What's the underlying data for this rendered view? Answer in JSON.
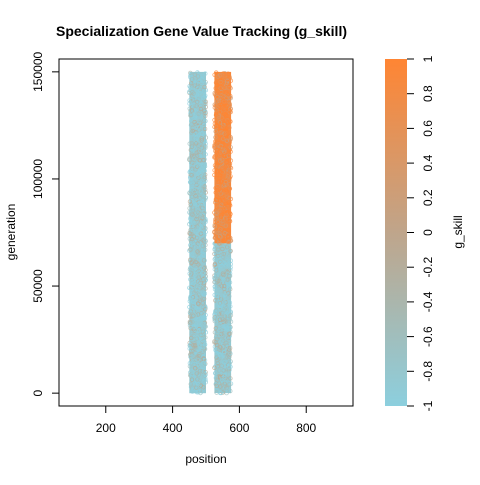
{
  "chart_data": {
    "type": "scatter",
    "title": "Specialization Gene Value Tracking (g_skill)",
    "xlabel": "position",
    "ylabel": "generation",
    "xlim": [
      60,
      940
    ],
    "ylim": [
      -6000,
      156000
    ],
    "x_ticks": [
      200,
      400,
      600,
      800
    ],
    "x_tick_labels": [
      "200",
      "400",
      "600",
      "800"
    ],
    "y_ticks": [
      0,
      50000,
      100000,
      150000
    ],
    "y_tick_labels": [
      "0",
      "50000",
      "100000",
      "150000"
    ],
    "grid": false,
    "colorbar": {
      "label": "g_skill",
      "range": [
        -1,
        1
      ],
      "ticks": [
        -1,
        -0.8,
        -0.6,
        -0.4,
        -0.2,
        0,
        0.2,
        0.4,
        0.6,
        0.8,
        1
      ],
      "tick_labels": [
        "-1",
        "-0.8",
        "-0.6",
        "-0.4",
        "-0.2",
        "0",
        "0.2",
        "0.4",
        "0.6",
        "0.8",
        "1"
      ],
      "color_low": "#8ccfde",
      "color_mid": "#bfa58b",
      "color_high": "#ff8533"
    },
    "series": [
      {
        "x_range": [
          450,
          500
        ],
        "y_range": [
          0,
          150000
        ],
        "segments": [
          {
            "y_from": 0,
            "y_to": 150000,
            "g_skill": -0.85
          }
        ]
      },
      {
        "x_range": [
          525,
          575
        ],
        "y_range": [
          0,
          150000
        ],
        "segments": [
          {
            "y_from": 0,
            "y_to": 70000,
            "g_skill": -0.85
          },
          {
            "y_from": 70000,
            "y_to": 150000,
            "g_skill": 0.85
          }
        ]
      }
    ]
  }
}
